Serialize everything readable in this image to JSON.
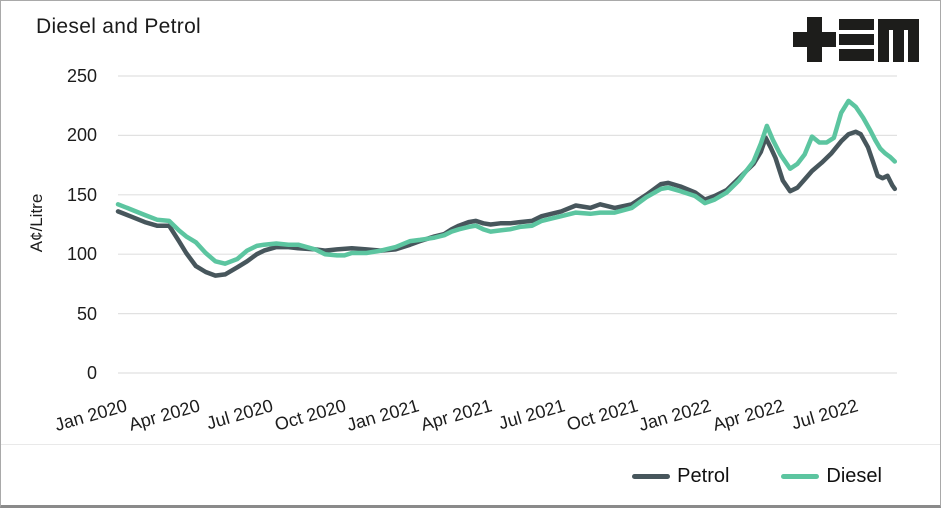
{
  "header": {
    "title": "Diesel and Petrol",
    "logo": {
      "glyphs": "+≡M",
      "color": "#1d1d1b"
    }
  },
  "legend": {
    "petrol_label": "Petrol",
    "diesel_label": "Diesel"
  },
  "colors": {
    "petrol": "#47565c",
    "diesel": "#5cc5a0",
    "gridline": "#e1e1e1",
    "text": "#1c1c1c"
  },
  "chart_data": {
    "type": "line",
    "title": "Diesel and Petrol",
    "xlabel": "",
    "ylabel": "A¢/Litre",
    "ylim": [
      0,
      250
    ],
    "yticks": [
      0,
      50,
      100,
      150,
      200,
      250
    ],
    "grid": "horizontal",
    "legend_position": "bottom-right",
    "x_unit": "months since Jan 2020",
    "x_range_months": [
      0,
      31.9
    ],
    "xticks": [
      {
        "month": 0,
        "label": "Jan 2020"
      },
      {
        "month": 3,
        "label": "Apr 2020"
      },
      {
        "month": 6,
        "label": "Jul 2020"
      },
      {
        "month": 9,
        "label": "Oct 2020"
      },
      {
        "month": 12,
        "label": "Jan 2021"
      },
      {
        "month": 15,
        "label": "Apr 2021"
      },
      {
        "month": 18,
        "label": "Jul 2021"
      },
      {
        "month": 21,
        "label": "Oct 2021"
      },
      {
        "month": 24,
        "label": "Jan 2022"
      },
      {
        "month": 27,
        "label": "Apr 2022"
      },
      {
        "month": 30,
        "label": "Jul 2022"
      }
    ],
    "series": [
      {
        "name": "Petrol",
        "color": "#47565c",
        "points": [
          [
            0,
            136
          ],
          [
            0.5,
            132
          ],
          [
            1.1,
            127
          ],
          [
            1.6,
            124
          ],
          [
            2.1,
            124
          ],
          [
            2.5,
            111
          ],
          [
            2.8,
            101
          ],
          [
            3.2,
            90
          ],
          [
            3.6,
            85
          ],
          [
            4,
            82
          ],
          [
            4.4,
            83
          ],
          [
            4.9,
            89
          ],
          [
            5.3,
            94
          ],
          [
            5.7,
            100
          ],
          [
            6,
            103
          ],
          [
            6.5,
            106
          ],
          [
            7,
            106
          ],
          [
            7.4,
            105
          ],
          [
            8.1,
            104
          ],
          [
            8.5,
            103
          ],
          [
            9,
            104
          ],
          [
            9.6,
            105
          ],
          [
            10.2,
            104
          ],
          [
            10.8,
            103
          ],
          [
            11.4,
            104
          ],
          [
            12,
            108
          ],
          [
            12.4,
            111
          ],
          [
            12.7,
            113
          ],
          [
            13,
            115
          ],
          [
            13.4,
            117
          ],
          [
            13.7,
            121
          ],
          [
            14,
            124
          ],
          [
            14.4,
            127
          ],
          [
            14.7,
            128
          ],
          [
            15,
            126
          ],
          [
            15.3,
            125
          ],
          [
            15.7,
            126
          ],
          [
            16.1,
            126
          ],
          [
            16.5,
            127
          ],
          [
            17,
            128
          ],
          [
            17.4,
            132
          ],
          [
            17.8,
            134
          ],
          [
            18.2,
            136
          ],
          [
            18.8,
            141
          ],
          [
            19.4,
            139
          ],
          [
            19.8,
            142
          ],
          [
            20.4,
            139
          ],
          [
            21.1,
            142
          ],
          [
            21.7,
            150
          ],
          [
            22.3,
            159
          ],
          [
            22.6,
            160
          ],
          [
            23.1,
            157
          ],
          [
            23.7,
            152
          ],
          [
            24.1,
            146
          ],
          [
            24.5,
            149
          ],
          [
            25,
            154
          ],
          [
            25.5,
            164
          ],
          [
            26.1,
            176
          ],
          [
            26.4,
            186
          ],
          [
            26.6,
            198
          ],
          [
            26.8,
            190
          ],
          [
            27,
            181
          ],
          [
            27.3,
            162
          ],
          [
            27.6,
            153
          ],
          [
            27.9,
            156
          ],
          [
            28.2,
            163
          ],
          [
            28.5,
            170
          ],
          [
            28.9,
            177
          ],
          [
            29.3,
            185
          ],
          [
            29.7,
            195
          ],
          [
            30,
            201
          ],
          [
            30.3,
            203
          ],
          [
            30.5,
            201
          ],
          [
            30.8,
            190
          ],
          [
            31,
            178
          ],
          [
            31.2,
            166
          ],
          [
            31.4,
            164
          ],
          [
            31.6,
            166
          ],
          [
            31.8,
            158
          ],
          [
            31.9,
            155
          ]
        ]
      },
      {
        "name": "Diesel",
        "color": "#5cc5a0",
        "points": [
          [
            0,
            142
          ],
          [
            0.5,
            138
          ],
          [
            1.1,
            133
          ],
          [
            1.6,
            129
          ],
          [
            2.1,
            128
          ],
          [
            2.5,
            120
          ],
          [
            2.8,
            115
          ],
          [
            3.2,
            110
          ],
          [
            3.6,
            101
          ],
          [
            4,
            94
          ],
          [
            4.4,
            92
          ],
          [
            4.9,
            96
          ],
          [
            5.3,
            103
          ],
          [
            5.7,
            107
          ],
          [
            6,
            108
          ],
          [
            6.5,
            109
          ],
          [
            7,
            108
          ],
          [
            7.4,
            108
          ],
          [
            8.1,
            104
          ],
          [
            8.5,
            100
          ],
          [
            9,
            99
          ],
          [
            9.3,
            99
          ],
          [
            9.6,
            101
          ],
          [
            10.2,
            101
          ],
          [
            10.8,
            103
          ],
          [
            11.4,
            106
          ],
          [
            12,
            111
          ],
          [
            12.4,
            112
          ],
          [
            12.7,
            113
          ],
          [
            13,
            114
          ],
          [
            13.4,
            116
          ],
          [
            13.7,
            119
          ],
          [
            14,
            121
          ],
          [
            14.4,
            123
          ],
          [
            14.7,
            124
          ],
          [
            15,
            121
          ],
          [
            15.3,
            119
          ],
          [
            15.7,
            120
          ],
          [
            16.1,
            121
          ],
          [
            16.5,
            123
          ],
          [
            17,
            124
          ],
          [
            17.4,
            128
          ],
          [
            17.8,
            130
          ],
          [
            18.2,
            132
          ],
          [
            18.8,
            135
          ],
          [
            19.4,
            134
          ],
          [
            19.8,
            135
          ],
          [
            20.4,
            135
          ],
          [
            21.1,
            139
          ],
          [
            21.7,
            148
          ],
          [
            22.3,
            155
          ],
          [
            22.6,
            156
          ],
          [
            23.1,
            153
          ],
          [
            23.7,
            149
          ],
          [
            24.1,
            143
          ],
          [
            24.5,
            146
          ],
          [
            25,
            152
          ],
          [
            25.5,
            162
          ],
          [
            26.1,
            178
          ],
          [
            26.4,
            193
          ],
          [
            26.65,
            208
          ],
          [
            26.9,
            196
          ],
          [
            27.2,
            184
          ],
          [
            27.6,
            172
          ],
          [
            27.9,
            176
          ],
          [
            28.2,
            184
          ],
          [
            28.5,
            199
          ],
          [
            28.8,
            194
          ],
          [
            29.1,
            194
          ],
          [
            29.4,
            198
          ],
          [
            29.7,
            219
          ],
          [
            30,
            229
          ],
          [
            30.3,
            224
          ],
          [
            30.6,
            215
          ],
          [
            30.9,
            204
          ],
          [
            31.1,
            196
          ],
          [
            31.3,
            189
          ],
          [
            31.5,
            185
          ],
          [
            31.7,
            182
          ],
          [
            31.9,
            178
          ]
        ]
      }
    ]
  }
}
